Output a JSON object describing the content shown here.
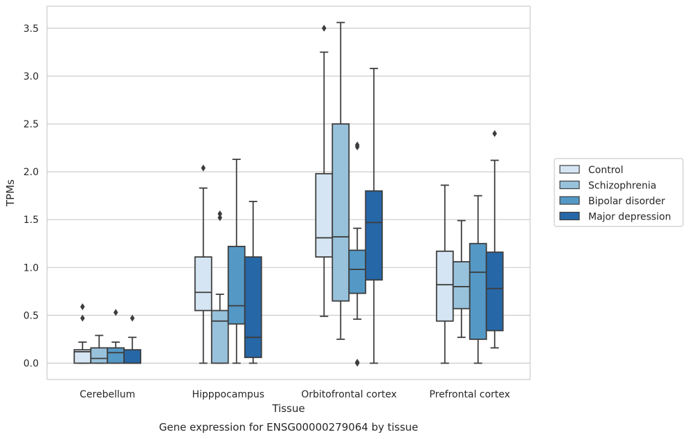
{
  "chart_data": {
    "type": "box",
    "caption": "Gene expression for ENSG00000279064 by tissue",
    "xlabel": "Tissue",
    "ylabel": "TPMs",
    "ylim": [
      -0.17,
      3.73
    ],
    "yticks": [
      "0.0",
      "0.5",
      "1.0",
      "1.5",
      "2.0",
      "2.5",
      "3.0",
      "3.5"
    ],
    "grid": "horizontal",
    "legend_position": "right",
    "categories": [
      "Cerebellum",
      "Hipppocampus",
      "Orbitofrontal cortex",
      "Prefrontal cortex"
    ],
    "series": [
      {
        "name": "Control",
        "color": "#d5e5f3",
        "boxes": [
          {
            "min": 0.0,
            "q1": 0.0,
            "median": 0.12,
            "q3": 0.14,
            "max": 0.22,
            "outliers": [
              0.47,
              0.59
            ]
          },
          {
            "min": 0.0,
            "q1": 0.55,
            "median": 0.74,
            "q3": 1.11,
            "max": 1.83,
            "outliers": [
              2.04
            ]
          },
          {
            "min": 0.49,
            "q1": 1.11,
            "median": 1.31,
            "q3": 1.98,
            "max": 3.25,
            "outliers": [
              3.5
            ]
          },
          {
            "min": 0.0,
            "q1": 0.44,
            "median": 0.82,
            "q3": 1.17,
            "max": 1.86,
            "outliers": []
          }
        ]
      },
      {
        "name": "Schizophrenia",
        "color": "#98c2dc",
        "boxes": [
          {
            "min": 0.0,
            "q1": 0.0,
            "median": 0.05,
            "q3": 0.16,
            "max": 0.29,
            "outliers": []
          },
          {
            "min": 0.0,
            "q1": 0.0,
            "median": 0.44,
            "q3": 0.55,
            "max": 0.72,
            "outliers": [
              1.52,
              1.56
            ]
          },
          {
            "min": 0.25,
            "q1": 0.65,
            "median": 1.32,
            "q3": 2.5,
            "max": 3.56,
            "outliers": []
          },
          {
            "min": 0.27,
            "q1": 0.57,
            "median": 0.8,
            "q3": 1.06,
            "max": 1.49,
            "outliers": []
          }
        ]
      },
      {
        "name": "Bipolar disorder",
        "color": "#5499c6",
        "boxes": [
          {
            "min": 0.0,
            "q1": 0.0,
            "median": 0.11,
            "q3": 0.16,
            "max": 0.22,
            "outliers": [
              0.53
            ]
          },
          {
            "min": 0.0,
            "q1": 0.41,
            "median": 0.6,
            "q3": 1.22,
            "max": 2.13,
            "outliers": []
          },
          {
            "min": 0.46,
            "q1": 0.73,
            "median": 0.98,
            "q3": 1.18,
            "max": 1.41,
            "outliers": [
              0.0,
              0.01,
              2.26,
              2.28
            ]
          },
          {
            "min": 0.0,
            "q1": 0.25,
            "median": 0.95,
            "q3": 1.25,
            "max": 1.75,
            "outliers": []
          }
        ]
      },
      {
        "name": "Major depression",
        "color": "#2667a7",
        "boxes": [
          {
            "min": 0.0,
            "q1": 0.0,
            "median": 0.0,
            "q3": 0.14,
            "max": 0.27,
            "outliers": [
              0.47
            ]
          },
          {
            "min": 0.0,
            "q1": 0.06,
            "median": 0.27,
            "q3": 1.11,
            "max": 1.69,
            "outliers": []
          },
          {
            "min": 0.0,
            "q1": 0.87,
            "median": 1.47,
            "q3": 1.8,
            "max": 3.08,
            "outliers": []
          },
          {
            "min": 0.16,
            "q1": 0.34,
            "median": 0.78,
            "q3": 1.16,
            "max": 2.12,
            "outliers": [
              2.4
            ]
          }
        ]
      }
    ]
  }
}
